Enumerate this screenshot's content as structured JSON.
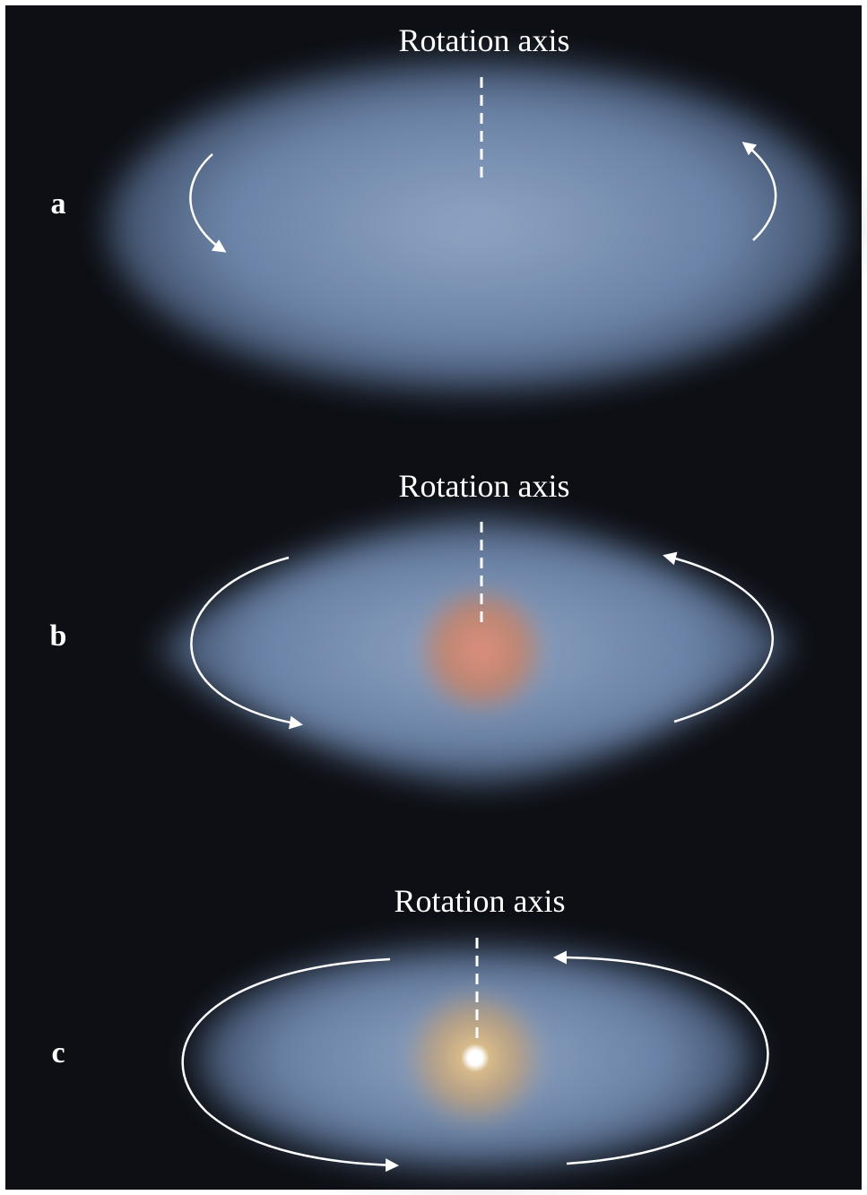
{
  "panels": [
    {
      "label": "a",
      "axis_label": "Rotation axis"
    },
    {
      "label": "b",
      "axis_label": "Rotation axis"
    },
    {
      "label": "c",
      "axis_label": "Rotation axis"
    }
  ]
}
